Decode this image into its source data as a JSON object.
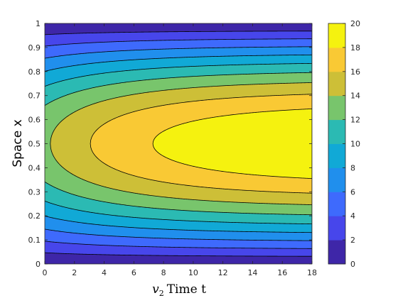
{
  "chart_data": {
    "type": "contourf",
    "xlabel_prefix": "v",
    "xlabel_subscript": "2",
    "xlabel_main": "Time t",
    "ylabel": "Space x",
    "xlim": [
      0,
      18
    ],
    "ylim": [
      0,
      1
    ],
    "x_ticks": [
      "0",
      "2",
      "4",
      "6",
      "8",
      "10",
      "12",
      "14",
      "16",
      "18"
    ],
    "y_ticks": [
      "0",
      "0.1",
      "0.2",
      "0.3",
      "0.4",
      "0.5",
      "0.6",
      "0.7",
      "0.8",
      "0.9",
      "1"
    ],
    "colorbar": {
      "range": [
        0,
        20
      ],
      "ticks": [
        "0",
        "2",
        "4",
        "6",
        "8",
        "10",
        "12",
        "14",
        "16",
        "18",
        "20"
      ],
      "colormap": "parula"
    },
    "contour_levels": [
      2,
      4,
      6,
      8,
      10,
      12,
      14,
      16,
      18,
      20
    ],
    "field": {
      "description_values": "v(t,x) approximately 20.7 * sin(pi x) * (1 - 0.34 * exp(-t/7.6))",
      "max_value_at_t18_center": 19.6
    }
  }
}
